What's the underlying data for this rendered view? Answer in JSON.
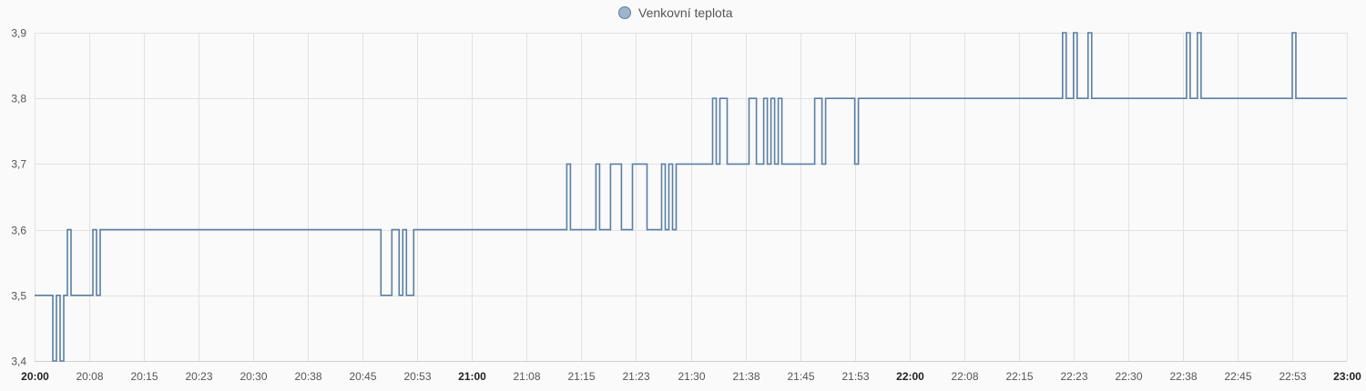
{
  "chart_data": {
    "type": "line",
    "step": true,
    "legend": {
      "placement": "top-center",
      "entries": [
        "Venkovní teplota"
      ]
    },
    "x_ticks": [
      "20:00",
      "20:08",
      "20:15",
      "20:23",
      "20:30",
      "20:38",
      "20:45",
      "20:53",
      "21:00",
      "21:08",
      "21:15",
      "21:23",
      "21:30",
      "21:38",
      "21:45",
      "21:53",
      "22:00",
      "22:08",
      "22:15",
      "22:23",
      "22:30",
      "22:38",
      "22:45",
      "22:53",
      "23:00"
    ],
    "x_ticks_bold": [
      "20:00",
      "21:00",
      "22:00",
      "23:00"
    ],
    "y_ticks": [
      "3,4",
      "3,5",
      "3,6",
      "3,7",
      "3,8",
      "3,9"
    ],
    "xlim": [
      "20:00",
      "23:00"
    ],
    "ylim": [
      3.4,
      3.9
    ],
    "grid": true,
    "colors": {
      "series": "#5b7fa3",
      "legend_marker": "#9db4cc"
    },
    "series": [
      {
        "name": "Venkovní teplota",
        "x": [
          "20:00",
          "20:02.5",
          "20:03",
          "20:03.5",
          "20:04",
          "20:04.5",
          "20:05",
          "20:06",
          "20:08",
          "20:08.5",
          "20:09",
          "20:47.5",
          "20:49",
          "20:50",
          "20:50.5",
          "20:51",
          "20:52",
          "20:53",
          "21:13",
          "21:13.5",
          "21:17",
          "21:17.5",
          "21:19",
          "21:20.5",
          "21:22",
          "21:23",
          "21:24",
          "21:26",
          "21:26.5",
          "21:27",
          "21:27.5",
          "21:28",
          "21:29",
          "21:30",
          "21:33",
          "21:33.5",
          "21:34",
          "21:35",
          "21:38",
          "21:39",
          "21:40",
          "21:40.5",
          "21:41",
          "21:41.5",
          "21:42",
          "21:42.5",
          "21:47",
          "21:48",
          "21:48.5",
          "21:52.5",
          "21:53",
          "22:21",
          "22:21.5",
          "22:22.5",
          "22:23",
          "22:24.5",
          "22:25",
          "22:36",
          "22:38",
          "22:38.5",
          "22:39.5",
          "22:40",
          "22:40.5",
          "22:52.5",
          "22:53",
          "23:00"
        ],
        "values": [
          3.5,
          3.4,
          3.5,
          3.4,
          3.5,
          3.6,
          3.5,
          3.5,
          3.6,
          3.5,
          3.6,
          3.5,
          3.6,
          3.5,
          3.6,
          3.5,
          3.6,
          3.6,
          3.7,
          3.6,
          3.7,
          3.6,
          3.7,
          3.6,
          3.7,
          3.7,
          3.6,
          3.7,
          3.6,
          3.7,
          3.6,
          3.7,
          3.7,
          3.7,
          3.8,
          3.7,
          3.8,
          3.7,
          3.8,
          3.7,
          3.8,
          3.7,
          3.8,
          3.7,
          3.8,
          3.7,
          3.8,
          3.7,
          3.8,
          3.7,
          3.8,
          3.9,
          3.8,
          3.9,
          3.8,
          3.9,
          3.8,
          3.8,
          3.9,
          3.8,
          3.9,
          3.8,
          3.8,
          3.9,
          3.8,
          3.8
        ]
      }
    ]
  }
}
